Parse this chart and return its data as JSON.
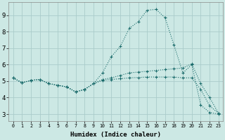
{
  "xlabel": "Humidex (Indice chaleur)",
  "xlim_min": -0.5,
  "xlim_max": 23.5,
  "ylim_min": 2.6,
  "ylim_max": 9.8,
  "yticks": [
    3,
    4,
    5,
    6,
    7,
    8,
    9
  ],
  "xticks": [
    0,
    1,
    2,
    3,
    4,
    5,
    6,
    7,
    8,
    9,
    10,
    11,
    12,
    13,
    14,
    15,
    16,
    17,
    18,
    19,
    20,
    21,
    22,
    23
  ],
  "bg_color": "#cce8e4",
  "grid_color": "#aaccca",
  "line_color": "#1a6b6b",
  "lines": [
    [
      5.2,
      4.9,
      5.05,
      5.1,
      4.85,
      4.75,
      4.65,
      4.35,
      4.5,
      4.85,
      5.5,
      6.5,
      7.1,
      8.2,
      8.6,
      9.3,
      9.35,
      8.85,
      7.2,
      5.5,
      6.0,
      3.55,
      3.1,
      3.0
    ],
    [
      5.2,
      4.9,
      5.05,
      5.1,
      4.85,
      4.75,
      4.65,
      4.35,
      4.5,
      4.85,
      5.1,
      5.2,
      5.35,
      5.5,
      5.55,
      5.6,
      5.65,
      5.7,
      5.75,
      5.8,
      6.05,
      4.85,
      4.0,
      3.05
    ],
    [
      5.2,
      4.9,
      5.05,
      5.1,
      4.85,
      4.75,
      4.65,
      4.35,
      4.5,
      4.85,
      5.05,
      5.1,
      5.15,
      5.2,
      5.22,
      5.25,
      5.25,
      5.25,
      5.25,
      5.2,
      5.2,
      4.5,
      3.5,
      3.05
    ]
  ]
}
